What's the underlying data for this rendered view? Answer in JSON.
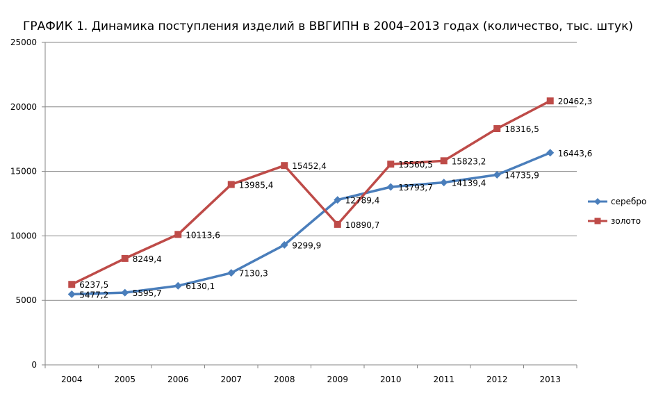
{
  "chart_data": {
    "type": "line",
    "title": "ГРАФИК 1. Динамика поступления изделий в ВВГИПН в 2004–2013 годах (количество, тыс. штук)",
    "categories": [
      "2004",
      "2005",
      "2006",
      "2007",
      "2008",
      "2009",
      "2010",
      "2011",
      "2012",
      "2013"
    ],
    "ylim": [
      0,
      25000
    ],
    "yticks": [
      0,
      5000,
      10000,
      15000,
      20000,
      25000
    ],
    "grid": true,
    "legend_position": "right",
    "series": [
      {
        "name": "серебро",
        "color": "#4a7ebb",
        "marker": "diamond",
        "values": [
          5477.2,
          5595.7,
          6130.1,
          7130.3,
          9299.9,
          12789.4,
          13793.7,
          14139.4,
          14735.9,
          16443.6
        ],
        "labels": [
          "5477,2",
          "5595,7",
          "6130,1",
          "7130,3",
          "9299,9",
          "12789,4",
          "13793,7",
          "14139,4",
          "14735,9",
          "16443,6"
        ]
      },
      {
        "name": "золото",
        "color": "#be4b48",
        "marker": "square",
        "values": [
          6237.5,
          8249.4,
          10113.6,
          13985.4,
          15452.4,
          10890.7,
          15560.5,
          15823.2,
          18316.5,
          20462.3
        ],
        "labels": [
          "6237,5",
          "8249,4",
          "10113,6",
          "13985,4",
          "15452,4",
          "10890,7",
          "15560,5",
          "15823,2",
          "18316,5",
          "20462,3"
        ]
      }
    ]
  }
}
